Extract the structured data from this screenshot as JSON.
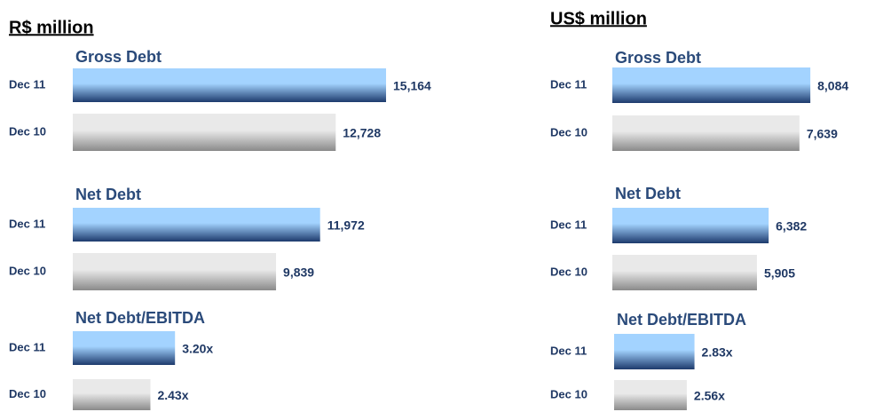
{
  "headings": [
    "R$ million",
    "US$ million"
  ],
  "chart_data": [
    {
      "type": "bar",
      "orientation": "horizontal",
      "title": "Gross Debt",
      "categories": [
        "Dec 11",
        "Dec 10"
      ],
      "values": [
        15164,
        12728
      ],
      "value_labels": [
        "15,164",
        "12,728"
      ],
      "colors": [
        [
          "#a3d3ff",
          "#1d3a6c"
        ],
        [
          "#e9e9e9",
          "#8a8a8a"
        ]
      ]
    },
    {
      "type": "bar",
      "orientation": "horizontal",
      "title": "Net Debt",
      "categories": [
        "Dec 11",
        "Dec 10"
      ],
      "values": [
        11972,
        9839
      ],
      "value_labels": [
        "11,972",
        "9,839"
      ],
      "colors": [
        [
          "#a3d3ff",
          "#1d3a6c"
        ],
        [
          "#e9e9e9",
          "#8a8a8a"
        ]
      ]
    },
    {
      "type": "bar",
      "orientation": "horizontal",
      "title": "Net Debt/EBITDA",
      "categories": [
        "Dec 11",
        "Dec 10"
      ],
      "values": [
        3.2,
        2.43
      ],
      "value_labels": [
        "3.20x",
        "2.43x"
      ],
      "colors": [
        [
          "#a3d3ff",
          "#1d3a6c"
        ],
        [
          "#e9e9e9",
          "#8a8a8a"
        ]
      ]
    },
    {
      "type": "bar",
      "orientation": "horizontal",
      "title": "Gross Debt",
      "categories": [
        "Dec 11",
        "Dec 10"
      ],
      "values": [
        8084,
        7639
      ],
      "value_labels": [
        "8,084",
        "7,639"
      ],
      "colors": [
        [
          "#a3d3ff",
          "#1d3a6c"
        ],
        [
          "#e9e9e9",
          "#8a8a8a"
        ]
      ]
    },
    {
      "type": "bar",
      "orientation": "horizontal",
      "title": "Net Debt",
      "categories": [
        "Dec 11",
        "Dec 10"
      ],
      "values": [
        6382,
        5905
      ],
      "value_labels": [
        "6,382",
        "5,905"
      ],
      "colors": [
        [
          "#a3d3ff",
          "#1d3a6c"
        ],
        [
          "#e9e9e9",
          "#8a8a8a"
        ]
      ]
    },
    {
      "type": "bar",
      "orientation": "horizontal",
      "title": "Net Debt/EBITDA",
      "categories": [
        "Dec 11",
        "Dec 10"
      ],
      "values": [
        2.83,
        2.56
      ],
      "value_labels": [
        "2.83x",
        "2.56x"
      ],
      "colors": [
        [
          "#a3d3ff",
          "#1d3a6c"
        ],
        [
          "#e9e9e9",
          "#8a8a8a"
        ]
      ]
    }
  ]
}
